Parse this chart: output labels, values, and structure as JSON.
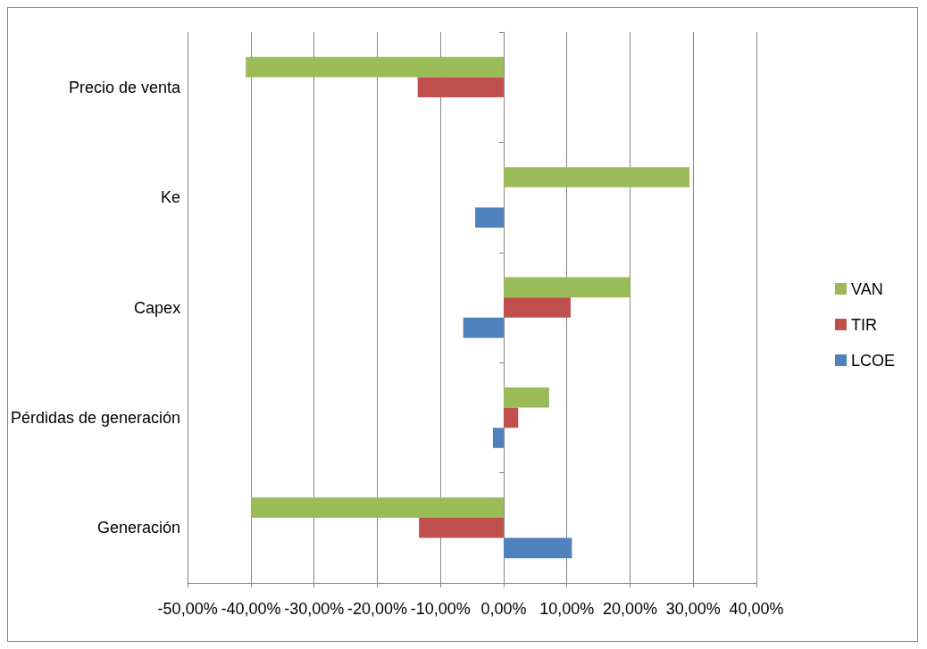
{
  "chart_data": {
    "type": "bar",
    "orientation": "horizontal",
    "categories": [
      "Precio de venta",
      "Ke",
      "Capex",
      "Pérdidas de generación",
      "Generación"
    ],
    "series": [
      {
        "name": "VAN",
        "color": "#9bbb59",
        "values": [
          -40.8,
          29.4,
          20.0,
          7.2,
          -40.0
        ]
      },
      {
        "name": "TIR",
        "color": "#c0504d",
        "values": [
          -13.6,
          null,
          10.6,
          2.3,
          -13.4
        ]
      },
      {
        "name": "LCOE",
        "color": "#4f81bd",
        "values": [
          null,
          -4.5,
          -6.4,
          -1.7,
          10.8
        ]
      }
    ],
    "xlim": [
      -50,
      40
    ],
    "xticks": [
      {
        "value": -50,
        "label": "-50,00%"
      },
      {
        "value": -40,
        "label": "-40,00%"
      },
      {
        "value": -30,
        "label": "-30,00%"
      },
      {
        "value": -20,
        "label": "-20,00%"
      },
      {
        "value": -10,
        "label": "-10,00%"
      },
      {
        "value": 0,
        "label": "0,00%"
      },
      {
        "value": 10,
        "label": "10,00%"
      },
      {
        "value": 20,
        "label": "20,00%"
      },
      {
        "value": 30,
        "label": "30,00%"
      },
      {
        "value": 40,
        "label": "40,00%"
      }
    ],
    "grid": "x",
    "legend": "right"
  }
}
